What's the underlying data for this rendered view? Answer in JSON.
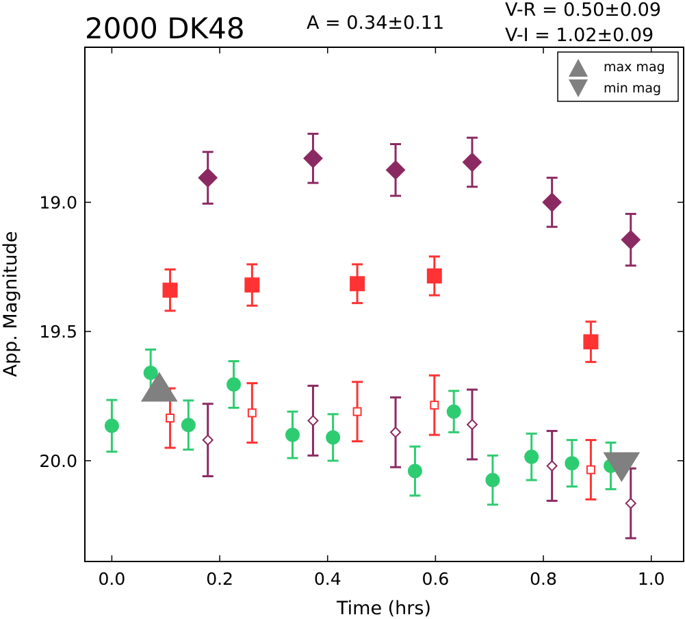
{
  "chart_data": {
    "type": "scatter",
    "title": "2000 DK48",
    "amplitude_label": "A  = 0.34±0.11",
    "color_labels": [
      "V-R = 0.50±0.09",
      "V-I  = 1.02±0.09"
    ],
    "xlabel": "Time (hrs)",
    "ylabel": "App. Magnitude",
    "xlim": [
      -0.05,
      1.06
    ],
    "ylim": [
      20.39,
      18.4
    ],
    "y_inverted": true,
    "xticks": [
      "0.0",
      "0.2",
      "0.4",
      "0.6",
      "0.8",
      "1.0"
    ],
    "xtick_values": [
      0.0,
      0.2,
      0.4,
      0.6,
      0.8,
      1.0
    ],
    "yticks": [
      "19.0",
      "19.5",
      "20.0"
    ],
    "ytick_values": [
      19.0,
      19.5,
      20.0
    ],
    "grid": false,
    "legend": {
      "placement": "top-right",
      "entries": [
        {
          "label": "max mag",
          "marker": "triangle-up",
          "color": "#808080"
        },
        {
          "label": "min mag",
          "marker": "triangle-down",
          "color": "#808080"
        }
      ]
    },
    "series": [
      {
        "marker": "circle",
        "filled": true,
        "color": "#2ecc71",
        "points": [
          {
            "x": 0.0,
            "y": 19.865,
            "err": 0.1
          },
          {
            "x": 0.072,
            "y": 19.66,
            "err": 0.09
          },
          {
            "x": 0.142,
            "y": 19.862,
            "err": 0.095
          },
          {
            "x": 0.226,
            "y": 19.705,
            "err": 0.09
          },
          {
            "x": 0.335,
            "y": 19.9,
            "err": 0.09
          },
          {
            "x": 0.41,
            "y": 19.91,
            "err": 0.09
          },
          {
            "x": 0.562,
            "y": 20.04,
            "err": 0.095
          },
          {
            "x": 0.634,
            "y": 19.81,
            "err": 0.08
          },
          {
            "x": 0.706,
            "y": 20.075,
            "err": 0.095
          },
          {
            "x": 0.778,
            "y": 19.985,
            "err": 0.09
          },
          {
            "x": 0.853,
            "y": 20.01,
            "err": 0.09
          },
          {
            "x": 0.925,
            "y": 20.02,
            "err": 0.09
          }
        ]
      },
      {
        "marker": "square",
        "filled": true,
        "color": "#ff3333",
        "points": [
          {
            "x": 0.108,
            "y": 19.34,
            "err": 0.08
          },
          {
            "x": 0.26,
            "y": 19.32,
            "err": 0.08
          },
          {
            "x": 0.455,
            "y": 19.315,
            "err": 0.075
          },
          {
            "x": 0.598,
            "y": 19.285,
            "err": 0.075
          },
          {
            "x": 0.888,
            "y": 19.54,
            "err": 0.078
          }
        ]
      },
      {
        "marker": "diamond",
        "filled": true,
        "color": "#8b2a62",
        "points": [
          {
            "x": 0.178,
            "y": 18.905,
            "err": 0.1
          },
          {
            "x": 0.373,
            "y": 18.83,
            "err": 0.095
          },
          {
            "x": 0.526,
            "y": 18.875,
            "err": 0.1
          },
          {
            "x": 0.668,
            "y": 18.845,
            "err": 0.095
          },
          {
            "x": 0.816,
            "y": 19.0,
            "err": 0.095
          },
          {
            "x": 0.962,
            "y": 19.145,
            "err": 0.1
          }
        ]
      },
      {
        "marker": "square",
        "filled": false,
        "color": "#ff3333",
        "points": [
          {
            "x": 0.108,
            "y": 19.835,
            "err": 0.115
          },
          {
            "x": 0.26,
            "y": 19.815,
            "err": 0.115
          },
          {
            "x": 0.455,
            "y": 19.81,
            "err": 0.115
          },
          {
            "x": 0.598,
            "y": 19.785,
            "err": 0.115
          },
          {
            "x": 0.888,
            "y": 20.035,
            "err": 0.115
          }
        ]
      },
      {
        "marker": "diamond",
        "filled": false,
        "color": "#8b2a62",
        "points": [
          {
            "x": 0.178,
            "y": 19.92,
            "err": 0.14
          },
          {
            "x": 0.373,
            "y": 19.845,
            "err": 0.135
          },
          {
            "x": 0.526,
            "y": 19.89,
            "err": 0.135
          },
          {
            "x": 0.668,
            "y": 19.86,
            "err": 0.135
          },
          {
            "x": 0.816,
            "y": 20.02,
            "err": 0.135
          },
          {
            "x": 0.962,
            "y": 20.165,
            "err": 0.135
          }
        ]
      },
      {
        "marker": "triangle-up",
        "filled": true,
        "color": "#808080",
        "label": "max mag",
        "points": [
          {
            "x": 0.088,
            "y": 19.77
          }
        ]
      },
      {
        "marker": "triangle-down",
        "filled": true,
        "color": "#808080",
        "label": "min mag",
        "points": [
          {
            "x": 0.945,
            "y": 20.08
          }
        ]
      }
    ]
  }
}
